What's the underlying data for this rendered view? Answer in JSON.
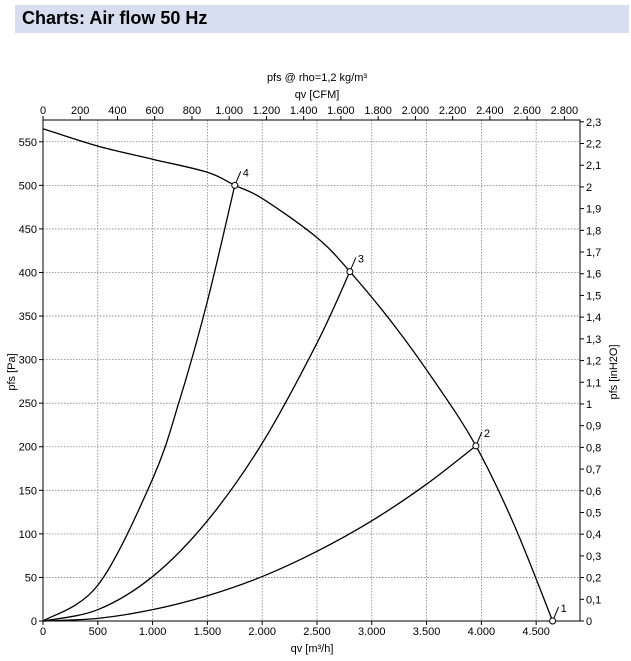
{
  "header": {
    "title": "Charts: Air flow 50 Hz"
  },
  "chart_data": {
    "type": "line",
    "title": "pfs @ rho=1,2 kg/m³",
    "xlabel": "qv [m³/h]",
    "ylabel": "pfs [Pa]",
    "x2label": "qv [CFM]",
    "y2label": "pfs [inH2O]",
    "xlim": [
      0,
      4900
    ],
    "ylim": [
      0,
      575
    ],
    "grid": true,
    "x_ticks": [
      "0",
      "500",
      "1.000",
      "1.500",
      "2.000",
      "2.500",
      "3.000",
      "3.500",
      "4.000",
      "4.500"
    ],
    "x_tick_values": [
      0,
      500,
      1000,
      1500,
      2000,
      2500,
      3000,
      3500,
      4000,
      4500
    ],
    "y_ticks": [
      "0",
      "50",
      "100",
      "150",
      "200",
      "250",
      "300",
      "350",
      "400",
      "450",
      "500",
      "550"
    ],
    "y_tick_values": [
      0,
      50,
      100,
      150,
      200,
      250,
      300,
      350,
      400,
      450,
      500,
      550
    ],
    "x2_ticks": [
      "0",
      "200",
      "400",
      "600",
      "800",
      "1.000",
      "1.200",
      "1.400",
      "1.600",
      "1.800",
      "2.000",
      "2.200",
      "2.400",
      "2.600",
      "2.800"
    ],
    "x2_tick_values": [
      0,
      200,
      400,
      600,
      800,
      1000,
      1200,
      1400,
      1600,
      1800,
      2000,
      2200,
      2400,
      2600,
      2800
    ],
    "y2_ticks": [
      "0",
      "0,1",
      "0,2",
      "0,3",
      "0,4",
      "0,5",
      "0,6",
      "0,7",
      "0,8",
      "0,9",
      "1",
      "1,1",
      "1,2",
      "1,3",
      "1,4",
      "1,5",
      "1,6",
      "1,7",
      "1,8",
      "1,9",
      "2",
      "2,1",
      "2,2",
      "2,3"
    ],
    "y2_tick_values": [
      0,
      0.1,
      0.2,
      0.3,
      0.4,
      0.5,
      0.6,
      0.7,
      0.8,
      0.9,
      1,
      1.1,
      1.2,
      1.3,
      1.4,
      1.5,
      1.6,
      1.7,
      1.8,
      1.9,
      2,
      2.1,
      2.2,
      2.3
    ],
    "series": [
      {
        "name": "",
        "x": [
          0,
          500,
          1000,
          1500,
          1750,
          2000,
          2500,
          2800,
          3200,
          3600,
          3950,
          4300,
          4650
        ],
        "y": [
          565,
          545,
          530,
          515,
          500,
          485,
          440,
          401,
          340,
          270,
          201,
          110,
          0
        ]
      },
      {
        "name": "",
        "x": [
          0,
          500,
          1000,
          1500,
          2000,
          2500,
          3000,
          3500,
          3950
        ],
        "y": [
          0,
          3,
          13,
          29,
          51,
          80,
          115,
          157,
          201
        ]
      },
      {
        "name": "",
        "x": [
          0,
          500,
          1000,
          1500,
          2000,
          2500,
          2800
        ],
        "y": [
          0,
          13,
          51,
          115,
          204,
          319,
          401
        ]
      },
      {
        "name": "",
        "x": [
          0,
          500,
          1000,
          1250,
          1500,
          1750
        ],
        "y": [
          0,
          41,
          163,
          255,
          367,
          500
        ]
      }
    ],
    "operating_points": [
      {
        "label": "1",
        "x": 4650,
        "y": 0
      },
      {
        "label": "2",
        "x": 3950,
        "y": 201
      },
      {
        "label": "3",
        "x": 2800,
        "y": 401
      },
      {
        "label": "4",
        "x": 1750,
        "y": 500
      }
    ]
  }
}
